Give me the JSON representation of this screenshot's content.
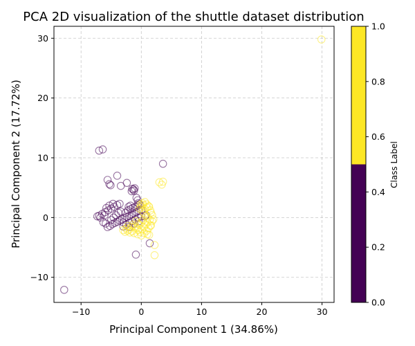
{
  "chart_data": {
    "type": "scatter",
    "title": "PCA 2D visualization of the shuttle dataset distribution",
    "xlabel": "Principal Component 1 (34.86%)",
    "ylabel": "Principal Component 2 (17.72%)",
    "xlim": [
      -14.5,
      32
    ],
    "ylim": [
      -14.2,
      32
    ],
    "xticks": [
      -10,
      0,
      10,
      20,
      30
    ],
    "yticks": [
      -10,
      0,
      10,
      20,
      30
    ],
    "grid": true,
    "marker": "hollow-circle",
    "colorbar": {
      "label": "Class Label",
      "range": [
        0,
        1
      ],
      "ticks": [
        "0.0",
        "0.2",
        "0.4",
        "0.6",
        "0.8",
        "1.0"
      ],
      "colors": {
        "0": "#440154",
        "1": "#fde725"
      }
    },
    "series": [
      {
        "class": 0,
        "points": [
          [
            -12.8,
            -12.1
          ],
          [
            -7.0,
            11.2
          ],
          [
            -6.4,
            11.4
          ],
          [
            -5.6,
            6.3
          ],
          [
            -5.3,
            5.6
          ],
          [
            -5.1,
            5.4
          ],
          [
            -4.0,
            7.0
          ],
          [
            -3.4,
            5.3
          ],
          [
            -2.4,
            5.8
          ],
          [
            -1.5,
            4.8
          ],
          [
            -1.3,
            4.7
          ],
          [
            -1.1,
            4.9
          ],
          [
            -1.6,
            4.4
          ],
          [
            -1.2,
            4.5
          ],
          [
            -0.8,
            3.3
          ],
          [
            -0.6,
            2.9
          ],
          [
            -0.5,
            2.4
          ],
          [
            -0.3,
            2.2
          ],
          [
            -1.8,
            2.0
          ],
          [
            -2.1,
            1.8
          ],
          [
            -7.3,
            0.2
          ],
          [
            -7.0,
            0.3
          ],
          [
            -6.5,
            0.6
          ],
          [
            -6.0,
            0.9
          ],
          [
            -5.5,
            1.2
          ],
          [
            -5.0,
            1.5
          ],
          [
            -4.5,
            1.8
          ],
          [
            -4.0,
            2.1
          ],
          [
            -3.6,
            2.3
          ],
          [
            -6.3,
            -0.8
          ],
          [
            -5.9,
            -1.0
          ],
          [
            -5.6,
            -1.6
          ],
          [
            -5.2,
            -1.4
          ],
          [
            -4.8,
            -1.1
          ],
          [
            -4.4,
            -0.9
          ],
          [
            -4.0,
            -0.7
          ],
          [
            -3.6,
            -0.5
          ],
          [
            -3.2,
            -0.3
          ],
          [
            -2.8,
            -0.1
          ],
          [
            -2.4,
            0.1
          ],
          [
            -2.0,
            0.3
          ],
          [
            -1.6,
            0.5
          ],
          [
            -1.2,
            0.7
          ],
          [
            -0.8,
            0.9
          ],
          [
            -0.4,
            1.1
          ],
          [
            0.0,
            1.3
          ],
          [
            -3.0,
            -1.5
          ],
          [
            -2.5,
            -1.2
          ],
          [
            -2.0,
            -0.9
          ],
          [
            -1.5,
            -0.6
          ],
          [
            -1.0,
            -0.3
          ],
          [
            -0.5,
            0.0
          ],
          [
            0.0,
            0.2
          ],
          [
            0.6,
            0.2
          ],
          [
            0.8,
            0.4
          ],
          [
            -0.9,
            -6.2
          ],
          [
            1.4,
            -4.3
          ],
          [
            -5.0,
            -0.4
          ],
          [
            -4.6,
            0.0
          ],
          [
            -4.2,
            0.4
          ],
          [
            -3.8,
            0.8
          ],
          [
            -3.4,
            1.0
          ],
          [
            -6.8,
            0.0
          ],
          [
            -6.1,
            0.4
          ],
          [
            -5.8,
            1.6
          ],
          [
            -5.3,
            2.0
          ],
          [
            -4.7,
            2.3
          ],
          [
            -2.6,
            0.8
          ],
          [
            -2.2,
            1.2
          ],
          [
            -1.8,
            1.4
          ],
          [
            -1.4,
            1.6
          ],
          [
            -1.0,
            1.8
          ],
          [
            -0.6,
            2.0
          ],
          [
            3.6,
            9.0
          ],
          [
            -3.0,
            -0.8
          ],
          [
            -2.0,
            -1.6
          ],
          [
            -1.2,
            -1.0
          ],
          [
            -0.4,
            -0.6
          ]
        ]
      },
      {
        "class": 1,
        "points": [
          [
            29.9,
            29.8
          ],
          [
            3.0,
            5.9
          ],
          [
            3.4,
            5.5
          ],
          [
            3.6,
            6.0
          ],
          [
            2.2,
            -4.6
          ],
          [
            2.2,
            -6.3
          ],
          [
            1.0,
            -2.8
          ],
          [
            1.3,
            -2.9
          ],
          [
            1.6,
            -1.3
          ],
          [
            2.0,
            -0.3
          ],
          [
            1.8,
            -0.6
          ],
          [
            1.5,
            1.2
          ],
          [
            1.3,
            1.8
          ],
          [
            0.9,
            2.2
          ],
          [
            0.6,
            2.6
          ],
          [
            0.3,
            2.1
          ],
          [
            0.0,
            1.8
          ],
          [
            -0.3,
            1.5
          ],
          [
            0.2,
            1.0
          ],
          [
            0.5,
            0.6
          ],
          [
            0.8,
            0.3
          ],
          [
            1.1,
            0.0
          ],
          [
            1.4,
            -0.4
          ],
          [
            1.0,
            -0.8
          ],
          [
            0.7,
            -1.2
          ],
          [
            0.4,
            -1.6
          ],
          [
            0.1,
            -2.0
          ],
          [
            -0.2,
            -2.4
          ],
          [
            -0.5,
            -2.1
          ],
          [
            -0.8,
            -1.8
          ],
          [
            -1.1,
            -1.5
          ],
          [
            -1.4,
            -1.2
          ],
          [
            -1.7,
            -1.6
          ],
          [
            -2.0,
            -2.0
          ],
          [
            -2.3,
            -2.2
          ],
          [
            -2.7,
            -2.4
          ],
          [
            -3.0,
            -2.1
          ],
          [
            -2.5,
            -1.8
          ],
          [
            -1.9,
            -2.5
          ],
          [
            -1.2,
            -2.6
          ],
          [
            -0.6,
            -2.8
          ],
          [
            0.0,
            -3.0
          ],
          [
            0.5,
            -2.6
          ],
          [
            0.9,
            -2.2
          ],
          [
            1.2,
            -1.8
          ],
          [
            1.5,
            -1.4
          ],
          [
            0.3,
            -0.4
          ],
          [
            0.0,
            -0.8
          ],
          [
            -0.3,
            -1.2
          ],
          [
            -0.6,
            -1.0
          ],
          [
            -0.9,
            -0.6
          ],
          [
            0.6,
            1.4
          ],
          [
            0.9,
            1.7
          ],
          [
            1.2,
            1.9
          ],
          [
            0.2,
            2.4
          ],
          [
            -0.1,
            2.2
          ],
          [
            1.6,
            0.8
          ],
          [
            1.8,
            0.4
          ],
          [
            -1.5,
            -2.3
          ],
          [
            -2.2,
            -1.4
          ]
        ]
      }
    ]
  }
}
